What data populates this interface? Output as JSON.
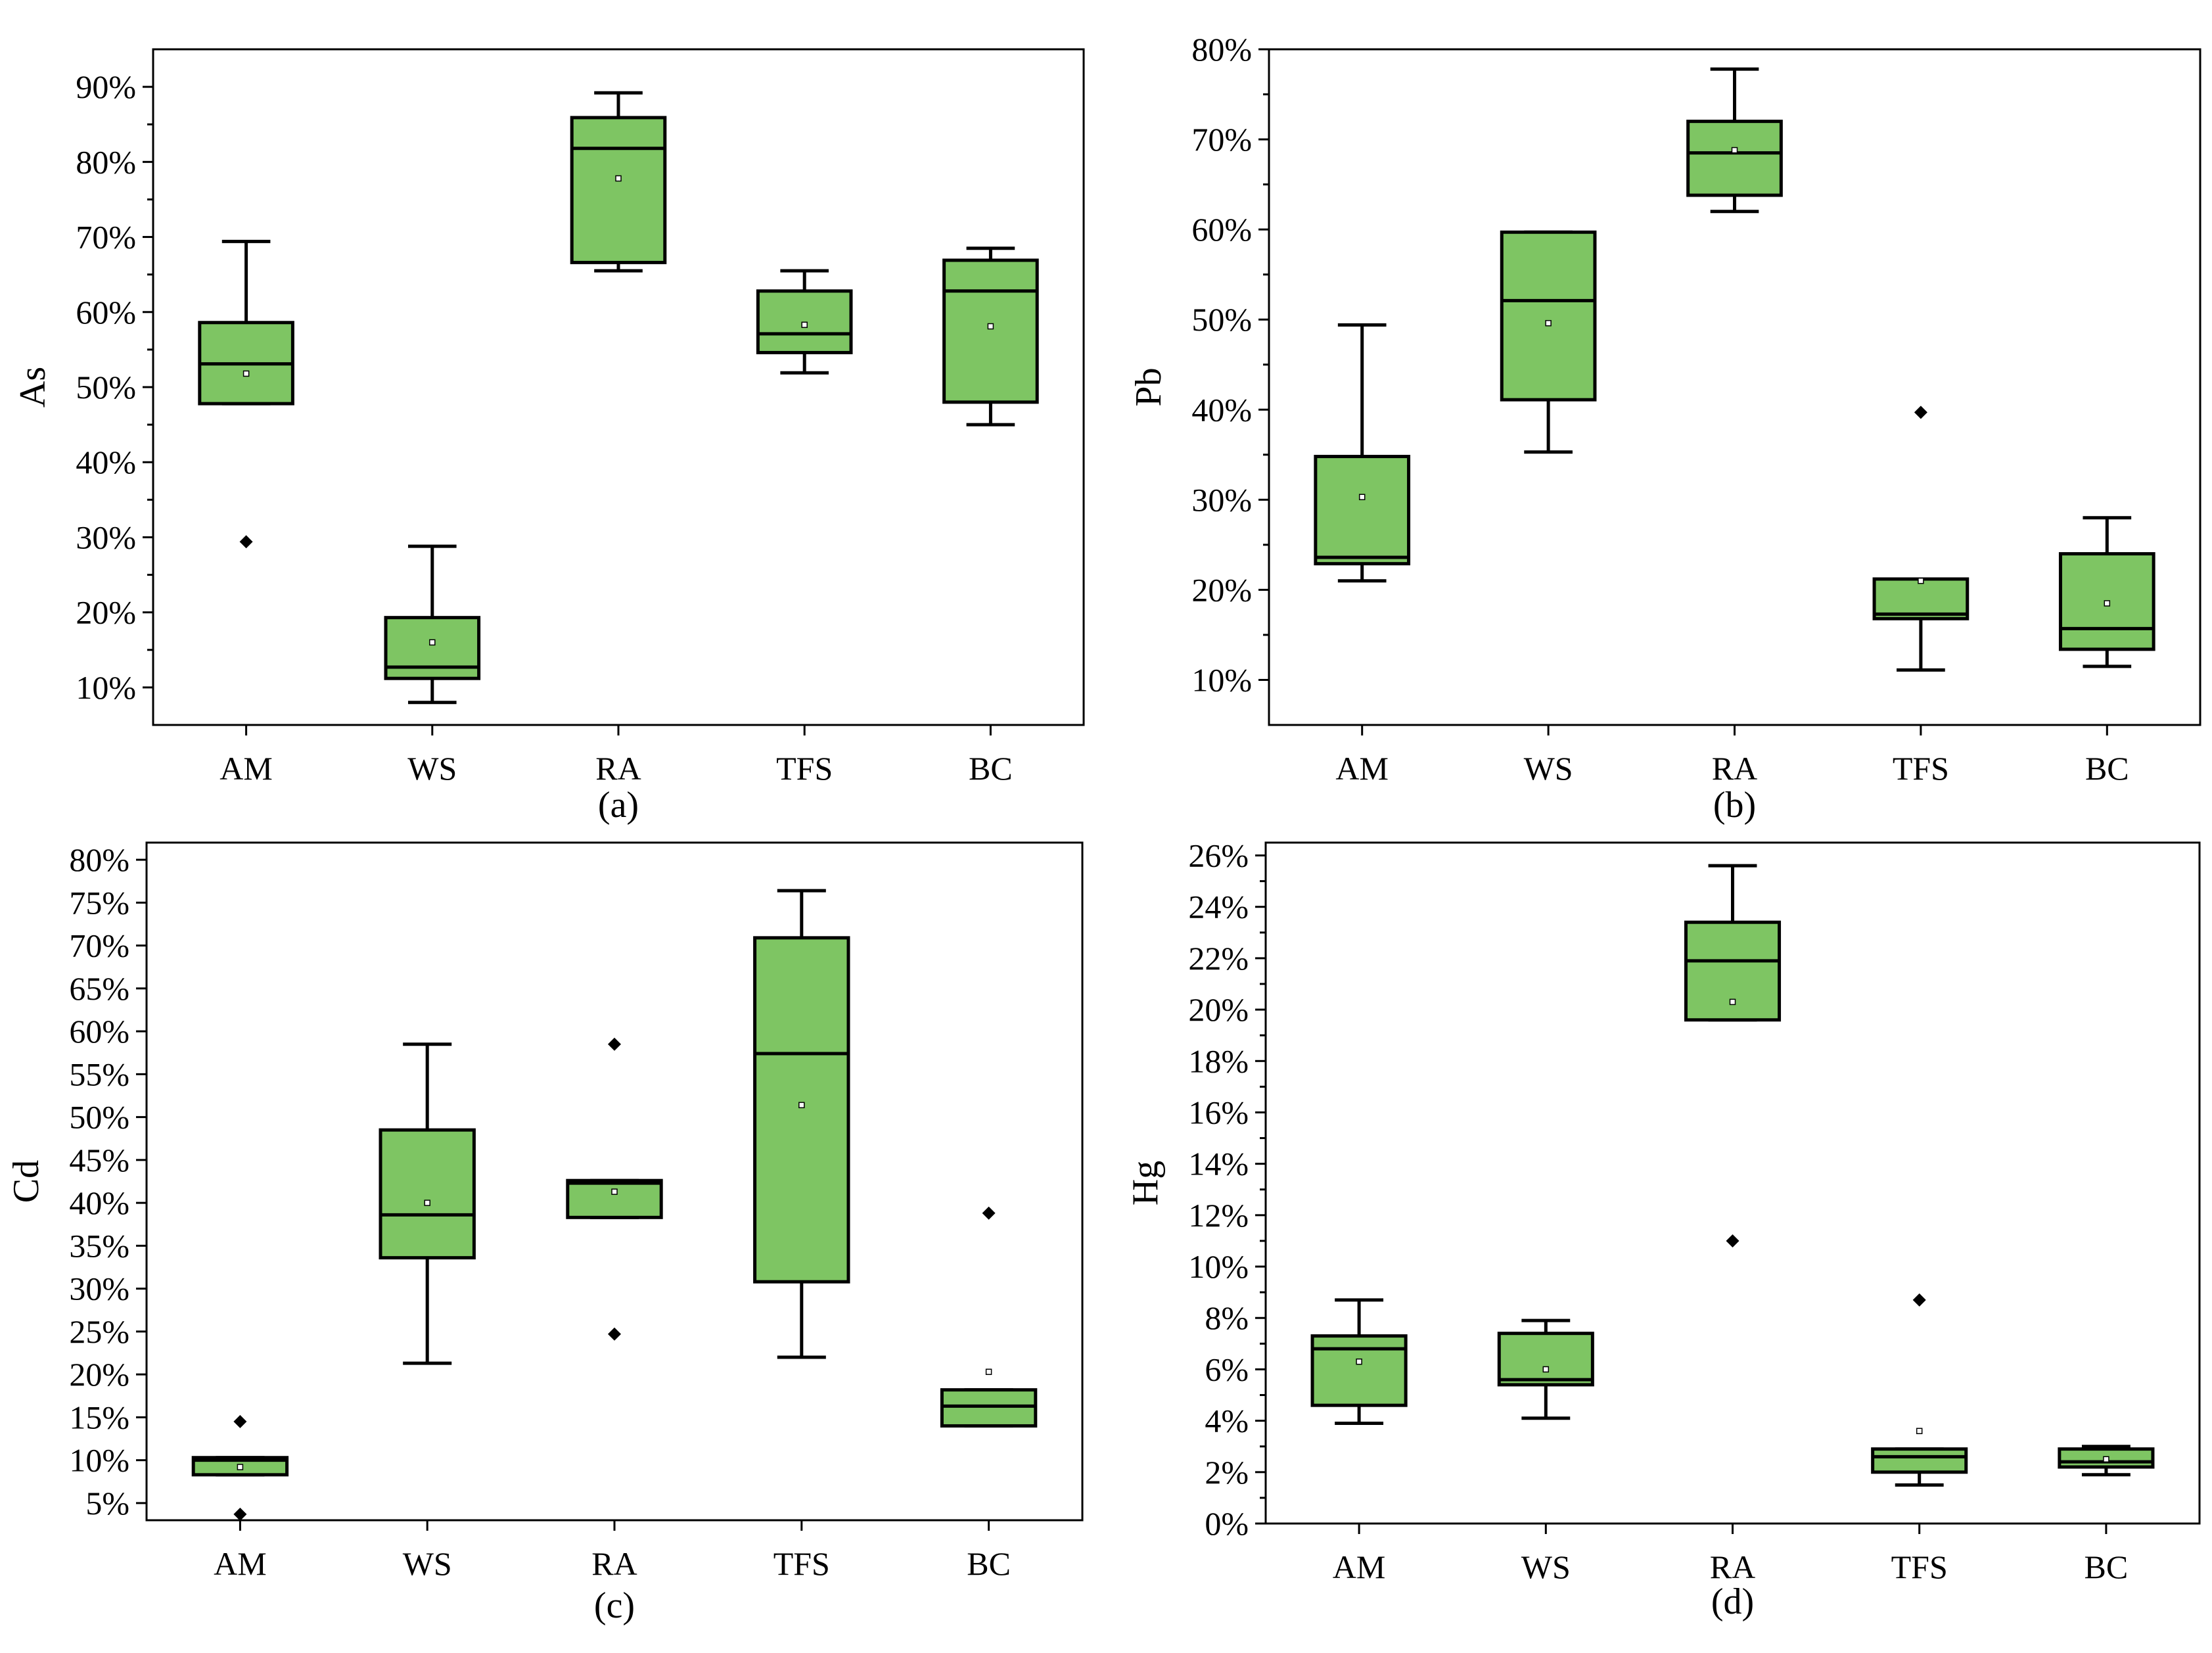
{
  "colors": {
    "box_fill": "#7ec563",
    "stroke": "#000000",
    "background": "#ffffff"
  },
  "chart_data": [
    {
      "type": "box",
      "panel": "(a)",
      "ylabel": "As",
      "xlabel": "",
      "categories": [
        "AM",
        "WS",
        "RA",
        "TFS",
        "BC"
      ],
      "ylim": [
        5,
        95
      ],
      "yticks": [
        10,
        20,
        30,
        40,
        50,
        60,
        70,
        80,
        90
      ],
      "ytick_labels": [
        "10%",
        "20%",
        "30%",
        "40%",
        "50%",
        "60%",
        "70%",
        "80%",
        "90%"
      ],
      "minor_ticks": true,
      "boxes": [
        {
          "category": "AM",
          "whisker_low": 47.8,
          "q1": 47.8,
          "median": 53.1,
          "q3": 58.6,
          "whisker_high": 69.4,
          "mean": 51.8,
          "outliers": [
            29.4
          ]
        },
        {
          "category": "WS",
          "whisker_low": 8.0,
          "q1": 11.2,
          "median": 12.7,
          "q3": 19.3,
          "whisker_high": 28.8,
          "mean": 16.0,
          "outliers": []
        },
        {
          "category": "RA",
          "whisker_low": 65.5,
          "q1": 66.6,
          "median": 81.8,
          "q3": 85.9,
          "whisker_high": 89.2,
          "mean": 77.8,
          "outliers": []
        },
        {
          "category": "TFS",
          "whisker_low": 51.9,
          "q1": 54.6,
          "median": 57.1,
          "q3": 62.8,
          "whisker_high": 65.5,
          "mean": 58.3,
          "outliers": []
        },
        {
          "category": "BC",
          "whisker_low": 45.0,
          "q1": 48.0,
          "median": 62.8,
          "q3": 66.9,
          "whisker_high": 68.5,
          "mean": 58.1,
          "outliers": []
        }
      ]
    },
    {
      "type": "box",
      "panel": "(b)",
      "ylabel": "Pb",
      "xlabel": "",
      "categories": [
        "AM",
        "WS",
        "RA",
        "TFS",
        "BC"
      ],
      "ylim": [
        5,
        80
      ],
      "yticks": [
        10,
        20,
        30,
        40,
        50,
        60,
        70,
        80
      ],
      "ytick_labels": [
        "10%",
        "20%",
        "30%",
        "40%",
        "50%",
        "60%",
        "70%",
        "80%"
      ],
      "minor_ticks": true,
      "boxes": [
        {
          "category": "AM",
          "whisker_low": 21.0,
          "q1": 22.9,
          "median": 23.6,
          "q3": 34.8,
          "whisker_high": 49.4,
          "mean": 30.3,
          "outliers": []
        },
        {
          "category": "WS",
          "whisker_low": 35.3,
          "q1": 41.1,
          "median": 52.1,
          "q3": 59.7,
          "whisker_high": 59.7,
          "mean": 49.6,
          "outliers": []
        },
        {
          "category": "RA",
          "whisker_low": 62.0,
          "q1": 63.8,
          "median": 68.5,
          "q3": 72.0,
          "whisker_high": 77.8,
          "mean": 68.8,
          "outliers": []
        },
        {
          "category": "TFS",
          "whisker_low": 11.1,
          "q1": 16.8,
          "median": 17.3,
          "q3": 21.2,
          "whisker_high": 21.2,
          "mean": 21.0,
          "outliers": [
            39.7
          ]
        },
        {
          "category": "BC",
          "whisker_low": 11.5,
          "q1": 13.4,
          "median": 15.7,
          "q3": 24.0,
          "whisker_high": 28.0,
          "mean": 18.5,
          "outliers": []
        }
      ]
    },
    {
      "type": "box",
      "panel": "(c)",
      "ylabel": "Cd",
      "xlabel": "",
      "categories": [
        "AM",
        "WS",
        "RA",
        "TFS",
        "BC"
      ],
      "ylim": [
        3,
        82
      ],
      "yticks": [
        5,
        10,
        15,
        20,
        25,
        30,
        35,
        40,
        45,
        50,
        55,
        60,
        65,
        70,
        75,
        80
      ],
      "ytick_labels": [
        "5%",
        "10%",
        "15%",
        "20%",
        "25%",
        "30%",
        "35%",
        "40%",
        "45%",
        "50%",
        "55%",
        "60%",
        "65%",
        "70%",
        "75%",
        "80%"
      ],
      "minor_ticks": false,
      "boxes": [
        {
          "category": "AM",
          "whisker_low": 8.3,
          "q1": 8.3,
          "median": 10.0,
          "q3": 10.3,
          "whisker_high": 10.3,
          "mean": 9.2,
          "outliers": [
            14.5,
            3.7
          ]
        },
        {
          "category": "WS",
          "whisker_low": 21.3,
          "q1": 33.6,
          "median": 38.6,
          "q3": 48.5,
          "whisker_high": 58.5,
          "mean": 40.0,
          "outliers": []
        },
        {
          "category": "RA",
          "whisker_low": 38.3,
          "q1": 38.3,
          "median": 42.3,
          "q3": 42.6,
          "whisker_high": 42.6,
          "mean": 41.3,
          "outliers": [
            58.5,
            24.7
          ]
        },
        {
          "category": "TFS",
          "whisker_low": 22.0,
          "q1": 30.8,
          "median": 57.4,
          "q3": 70.9,
          "whisker_high": 76.4,
          "mean": 51.4,
          "outliers": []
        },
        {
          "category": "BC",
          "whisker_low": 14.0,
          "q1": 14.0,
          "median": 16.3,
          "q3": 18.2,
          "whisker_high": 18.2,
          "mean": 20.3,
          "outliers": [
            38.8
          ]
        }
      ]
    },
    {
      "type": "box",
      "panel": "(d)",
      "ylabel": "Hg",
      "xlabel": "",
      "categories": [
        "AM",
        "WS",
        "RA",
        "TFS",
        "BC"
      ],
      "ylim": [
        0,
        26.5
      ],
      "yticks": [
        0,
        2,
        4,
        6,
        8,
        10,
        12,
        14,
        16,
        18,
        20,
        22,
        24,
        26
      ],
      "ytick_labels": [
        "0%",
        "2%",
        "4%",
        "6%",
        "8%",
        "10%",
        "12%",
        "14%",
        "16%",
        "18%",
        "20%",
        "22%",
        "24%",
        "26%"
      ],
      "minor_ticks": true,
      "boxes": [
        {
          "category": "AM",
          "whisker_low": 3.9,
          "q1": 4.6,
          "median": 6.8,
          "q3": 7.3,
          "whisker_high": 8.7,
          "mean": 6.3,
          "outliers": []
        },
        {
          "category": "WS",
          "whisker_low": 4.1,
          "q1": 5.4,
          "median": 5.6,
          "q3": 7.4,
          "whisker_high": 7.9,
          "mean": 6.0,
          "outliers": []
        },
        {
          "category": "RA",
          "whisker_low": 19.6,
          "q1": 19.6,
          "median": 21.9,
          "q3": 23.4,
          "whisker_high": 25.6,
          "mean": 20.3,
          "outliers": [
            11.0
          ]
        },
        {
          "category": "TFS",
          "whisker_low": 1.5,
          "q1": 2.0,
          "median": 2.6,
          "q3": 2.9,
          "whisker_high": 2.9,
          "mean": 3.6,
          "outliers": [
            8.7
          ]
        },
        {
          "category": "BC",
          "whisker_low": 1.9,
          "q1": 2.2,
          "median": 2.4,
          "q3": 2.9,
          "whisker_high": 3.0,
          "mean": 2.5,
          "outliers": []
        }
      ]
    }
  ]
}
